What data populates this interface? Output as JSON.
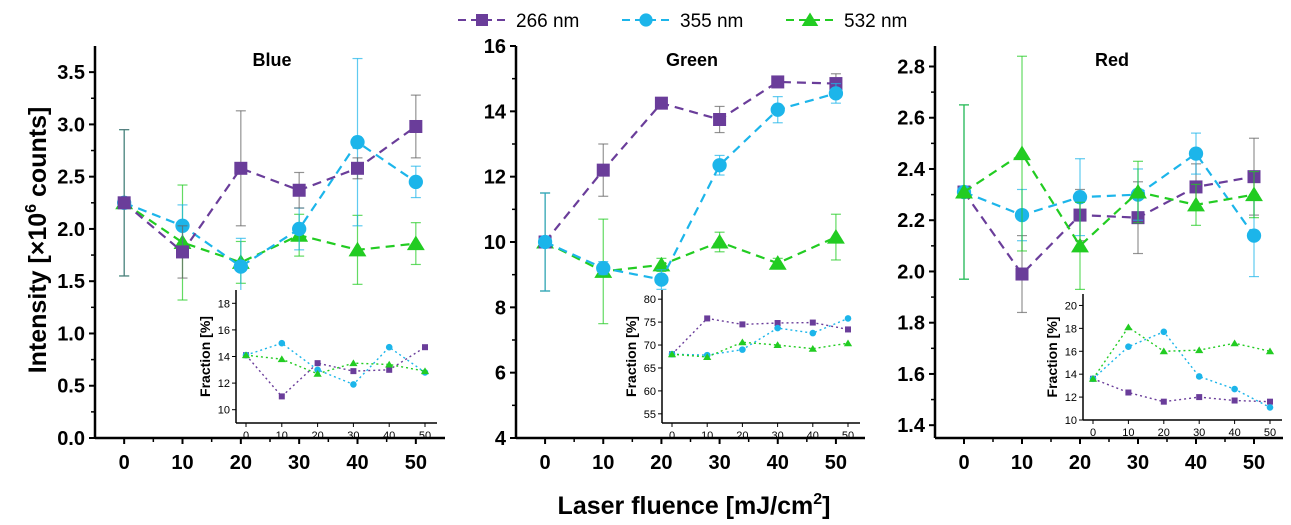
{
  "figure": {
    "y_label_main": "Intensity [×10",
    "y_label_sup": "6",
    "y_label_end": " counts]",
    "x_label_main": "Laser fluence [mJ/cm",
    "x_label_sup": "2",
    "x_label_end": "]",
    "legend": [
      {
        "name": "266 nm",
        "color": "#6a3d9a",
        "marker": "square"
      },
      {
        "name": "355 nm",
        "color": "#1cb5ea",
        "marker": "circle"
      },
      {
        "name": "532 nm",
        "color": "#22cc22",
        "marker": "triangle"
      }
    ]
  },
  "chart_data": [
    {
      "type": "line",
      "title": "Blue",
      "x": [
        0,
        10,
        20,
        30,
        40,
        50
      ],
      "xlim": [
        -5,
        55
      ],
      "ylim": [
        0,
        3.75
      ],
      "yticks": [
        0.0,
        0.5,
        1.0,
        1.5,
        2.0,
        2.5,
        3.0,
        3.5
      ],
      "ytick_labels": [
        "0.0",
        "0.5",
        "1.0",
        "1.5",
        "2.0",
        "2.5",
        "3.0",
        "3.5"
      ],
      "series": [
        {
          "name": "266 nm",
          "values": [
            2.25,
            1.78,
            2.58,
            2.37,
            2.58,
            2.98
          ],
          "errors": [
            0.7,
            0.25,
            0.55,
            0.17,
            0.1,
            0.3
          ]
        },
        {
          "name": "355 nm",
          "values": [
            2.25,
            2.03,
            1.64,
            2.0,
            2.83,
            2.45
          ],
          "errors": [
            0.7,
            0.2,
            0.27,
            0.2,
            0.8,
            0.15
          ]
        },
        {
          "name": "532 nm",
          "values": [
            2.25,
            1.87,
            1.68,
            1.94,
            1.8,
            1.86
          ],
          "errors": [
            0.7,
            0.55,
            0.2,
            0.2,
            0.33,
            0.2
          ]
        }
      ],
      "inset": {
        "ylabel": "Fraction [%]",
        "ylim": [
          9,
          19
        ],
        "yticks": [
          10,
          12,
          14,
          16,
          18
        ],
        "xticks": [
          0,
          10,
          20,
          30,
          40,
          50
        ],
        "series": [
          {
            "name": "266 nm",
            "values": [
              14.1,
              11.0,
              13.5,
              12.9,
              13.0,
              14.7
            ]
          },
          {
            "name": "355 nm",
            "values": [
              14.1,
              15.0,
              13.0,
              11.9,
              14.7,
              12.8
            ]
          },
          {
            "name": "532 nm",
            "values": [
              14.1,
              13.8,
              12.7,
              13.5,
              13.4,
              12.9
            ]
          }
        ]
      }
    },
    {
      "type": "line",
      "title": "Green",
      "x": [
        0,
        10,
        20,
        30,
        40,
        50
      ],
      "xlim": [
        -5,
        55
      ],
      "ylim": [
        4,
        16
      ],
      "yticks": [
        4,
        6,
        8,
        10,
        12,
        14,
        16
      ],
      "ytick_labels": [
        "4",
        "6",
        "8",
        "10",
        "12",
        "14",
        "16"
      ],
      "series": [
        {
          "name": "266 nm",
          "values": [
            10.0,
            12.2,
            14.25,
            13.75,
            14.9,
            14.85
          ],
          "errors": [
            1.5,
            0.8,
            0.1,
            0.4,
            0.15,
            0.3
          ]
        },
        {
          "name": "355 nm",
          "values": [
            10.0,
            9.2,
            8.85,
            12.35,
            14.05,
            14.55
          ],
          "errors": [
            1.5,
            0.2,
            0.3,
            0.3,
            0.4,
            0.3
          ]
        },
        {
          "name": "532 nm",
          "values": [
            10.0,
            9.1,
            9.3,
            10.0,
            9.35,
            10.15
          ],
          "errors": [
            1.5,
            1.6,
            0.2,
            0.3,
            0.15,
            0.7
          ]
        }
      ],
      "inset": {
        "ylabel": "Fraction [%]",
        "ylim": [
          53,
          82
        ],
        "yticks": [
          55,
          60,
          65,
          70,
          75,
          80
        ],
        "xticks": [
          0,
          10,
          20,
          30,
          40,
          50
        ],
        "series": [
          {
            "name": "266 nm",
            "values": [
              68.0,
              75.8,
              74.5,
              74.8,
              74.9,
              73.4
            ]
          },
          {
            "name": "355 nm",
            "values": [
              68.0,
              67.8,
              69.0,
              73.7,
              72.6,
              75.8
            ]
          },
          {
            "name": "532 nm",
            "values": [
              68.0,
              67.4,
              70.6,
              70.0,
              69.2,
              70.4
            ]
          }
        ]
      }
    },
    {
      "type": "line",
      "title": "Red",
      "x": [
        0,
        10,
        20,
        30,
        40,
        50
      ],
      "xlim": [
        -5,
        55
      ],
      "ylim": [
        1.35,
        2.88
      ],
      "yticks": [
        1.4,
        1.6,
        1.8,
        2.0,
        2.2,
        2.4,
        2.6,
        2.8
      ],
      "ytick_labels": [
        "1.4",
        "1.6",
        "1.8",
        "2.0",
        "2.2",
        "2.4",
        "2.6",
        "2.8"
      ],
      "series": [
        {
          "name": "266 nm",
          "values": [
            2.31,
            1.99,
            2.22,
            2.21,
            2.33,
            2.37
          ],
          "errors": [
            0.34,
            0.15,
            0.1,
            0.14,
            0.09,
            0.15
          ]
        },
        {
          "name": "355 nm",
          "values": [
            2.31,
            2.22,
            2.29,
            2.3,
            2.46,
            2.14
          ],
          "errors": [
            0.34,
            0.1,
            0.15,
            0.1,
            0.08,
            0.16
          ]
        },
        {
          "name": "532 nm",
          "values": [
            2.31,
            2.46,
            2.1,
            2.31,
            2.26,
            2.3
          ],
          "errors": [
            0.34,
            0.38,
            0.17,
            0.12,
            0.08,
            0.09
          ]
        }
      ],
      "inset": {
        "ylabel": "Fraction [%]",
        "ylim": [
          10,
          21
        ],
        "yticks": [
          10,
          12,
          14,
          16,
          18,
          20
        ],
        "xticks": [
          0,
          10,
          20,
          30,
          40,
          50
        ],
        "series": [
          {
            "name": "266 nm",
            "values": [
              13.6,
              12.4,
              11.6,
              12.0,
              11.7,
              11.6
            ]
          },
          {
            "name": "355 nm",
            "values": [
              13.6,
              16.4,
              17.7,
              13.8,
              12.7,
              11.1
            ]
          },
          {
            "name": "532 nm",
            "values": [
              13.6,
              18.1,
              16.0,
              16.1,
              16.7,
              16.0
            ]
          }
        ]
      }
    }
  ]
}
